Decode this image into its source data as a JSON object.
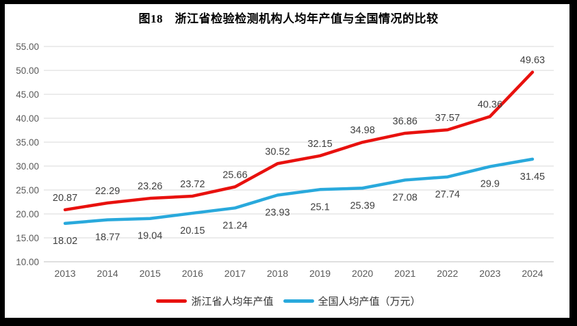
{
  "chart_data": {
    "type": "line",
    "title": "图18　浙江省检验检测机构人均年产值与全国情况的比较",
    "categories": [
      "2013",
      "2014",
      "2015",
      "2016",
      "2017",
      "2018",
      "2019",
      "2020",
      "2021",
      "2022",
      "2023",
      "2024"
    ],
    "series": [
      {
        "name": "浙江省人均年产值",
        "color": "#e8110e",
        "label_position": "above",
        "values": [
          20.87,
          22.29,
          23.26,
          23.72,
          25.66,
          30.52,
          32.15,
          34.98,
          36.86,
          37.57,
          40.36,
          49.63
        ]
      },
      {
        "name": "全国人均产值（万元）",
        "color": "#29a9dc",
        "label_position": "below",
        "values": [
          18.02,
          18.77,
          19.04,
          20.15,
          21.24,
          23.93,
          25.1,
          25.39,
          27.08,
          27.74,
          29.9,
          31.45
        ]
      }
    ],
    "y_ticks": [
      55,
      50,
      45,
      40,
      35,
      30,
      25,
      20,
      15,
      10
    ],
    "y_tick_labels": [
      "55.00",
      "50.00",
      "45.00",
      "40.00",
      "35.00",
      "30.00",
      "25.00",
      "20.00",
      "15.00",
      "10.00"
    ],
    "ylim": [
      10,
      55
    ],
    "grid": true,
    "legend_position": "bottom",
    "colors": {
      "gridline": "#d9d9d9",
      "axis_line": "#bfbfbf",
      "tick_text": "#595959",
      "data_label_text": "#404040",
      "title_text": "#000000",
      "legend_text": "#333333",
      "frame": "#000000"
    }
  }
}
